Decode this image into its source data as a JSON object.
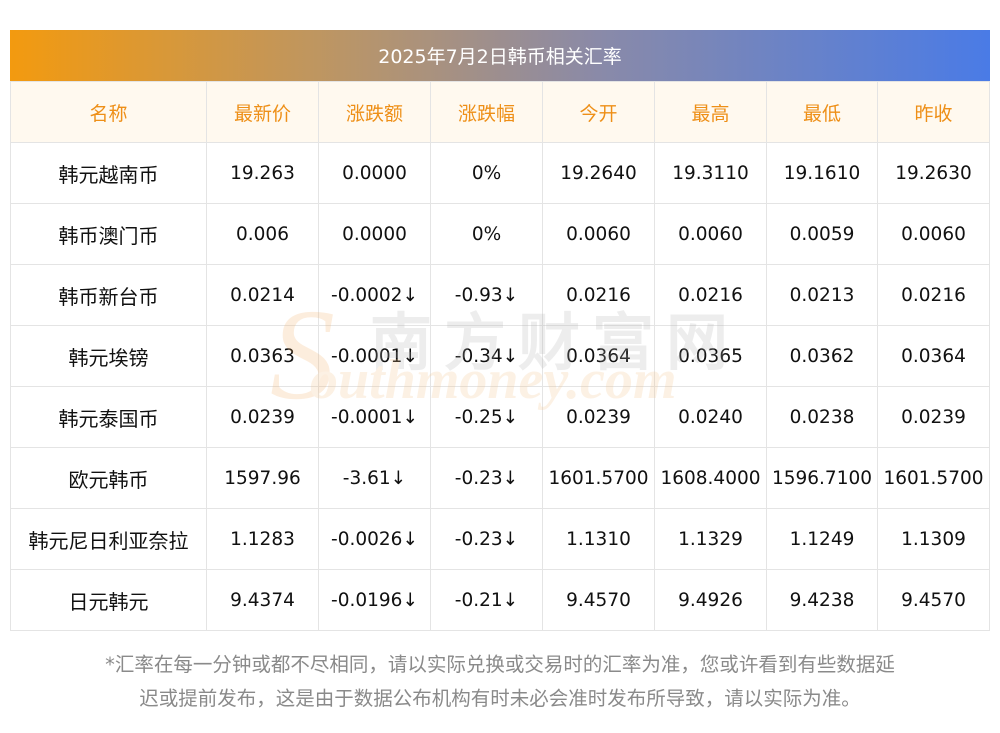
{
  "title": "2025年7月2日韩币相关汇率",
  "columns": [
    "名称",
    "最新价",
    "涨跌额",
    "涨跌幅",
    "今开",
    "最高",
    "最低",
    "昨收"
  ],
  "down_arrow": "↓",
  "colors": {
    "header_text": "#ee8f17",
    "down": "#1f8a1f",
    "gradient_start": "#f39a0f",
    "gradient_end": "#4a7be6"
  },
  "rows": [
    {
      "name": "韩元越南币",
      "price": "19.263",
      "change": "0.0000",
      "pct": "0%",
      "open": "19.2640",
      "high": "19.3110",
      "low": "19.1610",
      "prev": "19.2630",
      "down": false
    },
    {
      "name": "韩币澳门币",
      "price": "0.006",
      "change": "0.0000",
      "pct": "0%",
      "open": "0.0060",
      "high": "0.0060",
      "low": "0.0059",
      "prev": "0.0060",
      "down": false
    },
    {
      "name": "韩币新台币",
      "price": "0.0214",
      "change": "-0.0002",
      "pct": "-0.93",
      "open": "0.0216",
      "high": "0.0216",
      "low": "0.0213",
      "prev": "0.0216",
      "down": true
    },
    {
      "name": "韩元埃镑",
      "price": "0.0363",
      "change": "-0.0001",
      "pct": "-0.34",
      "open": "0.0364",
      "high": "0.0365",
      "low": "0.0362",
      "prev": "0.0364",
      "down": true
    },
    {
      "name": "韩元泰国币",
      "price": "0.0239",
      "change": "-0.0001",
      "pct": "-0.25",
      "open": "0.0239",
      "high": "0.0240",
      "low": "0.0238",
      "prev": "0.0239",
      "down": true
    },
    {
      "name": "欧元韩币",
      "price": "1597.96",
      "change": "-3.61",
      "pct": "-0.23",
      "open": "1601.5700",
      "high": "1608.4000",
      "low": "1596.7100",
      "prev": "1601.5700",
      "down": true
    },
    {
      "name": "韩元尼日利亚奈拉",
      "price": "1.1283",
      "change": "-0.0026",
      "pct": "-0.23",
      "open": "1.1310",
      "high": "1.1329",
      "low": "1.1249",
      "prev": "1.1309",
      "down": true
    },
    {
      "name": "日元韩元",
      "price": "9.4374",
      "change": "-0.0196",
      "pct": "-0.21",
      "open": "9.4570",
      "high": "9.4926",
      "low": "9.4238",
      "prev": "9.4570",
      "down": true
    }
  ],
  "footnote_line1": "*汇率在每一分钟或都不尽相同，请以实际兑换或交易时的汇率为准，您或许看到有些数据延",
  "footnote_line2": "迟或提前发布，这是由于数据公布机构有时未必会准时发布所导致，请以实际为准。",
  "watermark": {
    "cn": "南方财富网",
    "en": "outhmoney.com",
    "s": "S"
  }
}
